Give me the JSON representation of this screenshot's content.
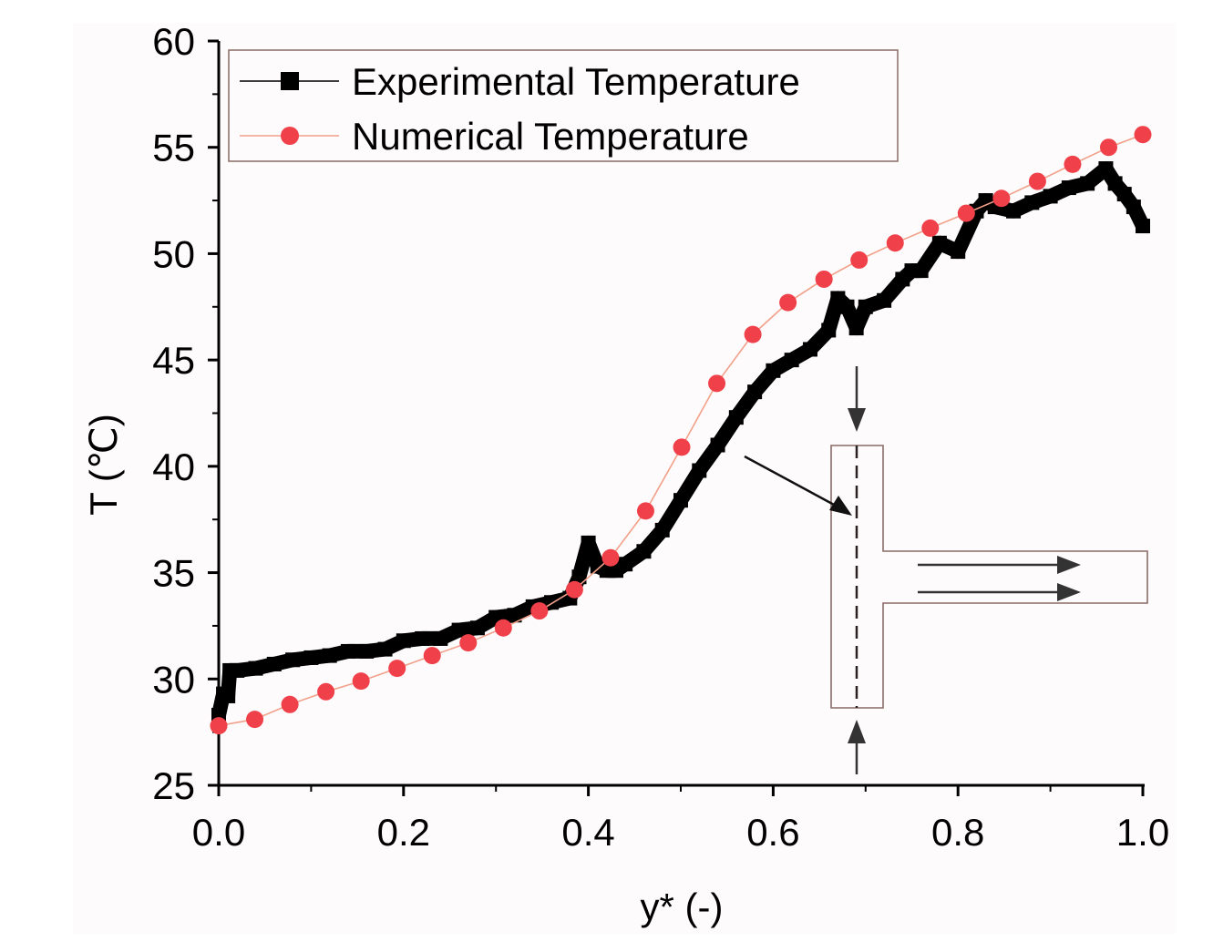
{
  "chart_data": {
    "type": "line",
    "xlabel": "y* (-)",
    "ylabel": "T (℃)",
    "xlim": [
      0.0,
      1.0
    ],
    "ylim": [
      25,
      60
    ],
    "xticks": [
      "0.0",
      "0.2",
      "0.4",
      "0.6",
      "0.8",
      "1.0"
    ],
    "yticks": [
      "25",
      "30",
      "35",
      "40",
      "45",
      "50",
      "55",
      "60"
    ],
    "grid": false,
    "legend_position": "top-left",
    "colors": {
      "experimental": "#000000",
      "numerical": "#f0404a",
      "numerical_line": "#f2a08a",
      "inset": "#8a6b66",
      "background": "#fdfbfb"
    },
    "series": [
      {
        "name": "Experimental Temperature",
        "marker": "square",
        "x": [
          0.0,
          0.005,
          0.01,
          0.012,
          0.02,
          0.04,
          0.06,
          0.08,
          0.1,
          0.12,
          0.14,
          0.16,
          0.18,
          0.2,
          0.22,
          0.24,
          0.26,
          0.28,
          0.3,
          0.32,
          0.34,
          0.36,
          0.38,
          0.39,
          0.4,
          0.41,
          0.42,
          0.43,
          0.44,
          0.46,
          0.48,
          0.5,
          0.52,
          0.54,
          0.56,
          0.58,
          0.6,
          0.62,
          0.64,
          0.66,
          0.67,
          0.68,
          0.69,
          0.7,
          0.72,
          0.74,
          0.75,
          0.76,
          0.78,
          0.8,
          0.82,
          0.83,
          0.84,
          0.86,
          0.88,
          0.9,
          0.92,
          0.94,
          0.96,
          0.97,
          0.98,
          0.99,
          1.0
        ],
        "values": [
          28.3,
          29.3,
          29.2,
          30.4,
          30.4,
          30.5,
          30.7,
          30.9,
          31.0,
          31.1,
          31.3,
          31.3,
          31.4,
          31.8,
          31.9,
          31.9,
          32.3,
          32.4,
          32.9,
          33.0,
          33.4,
          33.6,
          33.8,
          34.8,
          36.4,
          35.3,
          35.1,
          35.1,
          35.4,
          36.0,
          37.0,
          38.4,
          39.8,
          41.0,
          42.3,
          43.5,
          44.5,
          45.0,
          45.5,
          46.4,
          47.9,
          47.5,
          46.5,
          47.5,
          47.8,
          48.8,
          49.2,
          49.2,
          50.5,
          50.1,
          52.0,
          52.5,
          52.2,
          52.0,
          52.4,
          52.7,
          53.1,
          53.3,
          54.0,
          53.3,
          52.8,
          52.2,
          51.3
        ]
      },
      {
        "name": "Numerical Temperature",
        "marker": "circle",
        "x": [
          0.0,
          0.039,
          0.077,
          0.116,
          0.154,
          0.193,
          0.231,
          0.27,
          0.308,
          0.347,
          0.385,
          0.424,
          0.462,
          0.501,
          0.539,
          0.578,
          0.616,
          0.655,
          0.693,
          0.732,
          0.77,
          0.809,
          0.847,
          0.886,
          0.924,
          0.963,
          1.0
        ],
        "values": [
          27.8,
          28.1,
          28.8,
          29.4,
          29.9,
          30.5,
          31.1,
          31.7,
          32.4,
          33.2,
          34.2,
          35.7,
          37.9,
          40.9,
          43.9,
          46.2,
          47.7,
          48.8,
          49.7,
          50.5,
          51.2,
          51.9,
          52.6,
          53.4,
          54.2,
          55.0,
          55.6
        ]
      }
    ]
  }
}
